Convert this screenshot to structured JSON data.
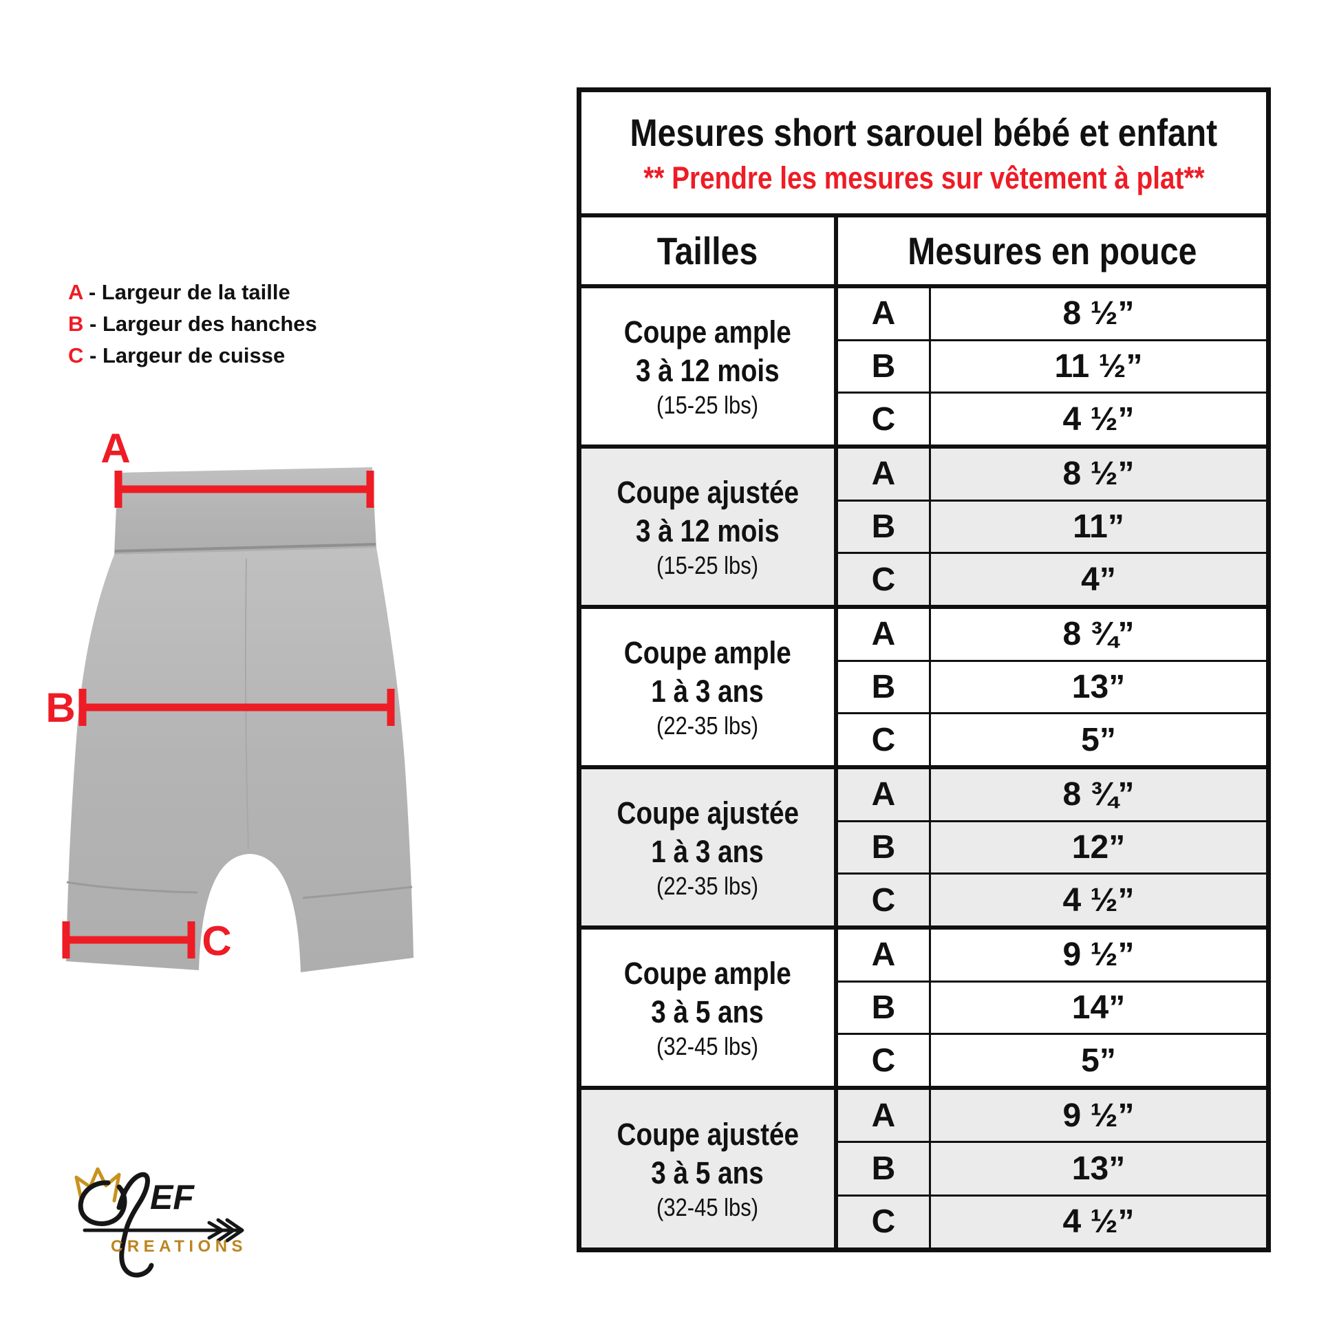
{
  "colors": {
    "red": "#ee1c25",
    "border": "#101010",
    "shaded_row": "#ebebeb",
    "shorts_gray": "#b6b6b6",
    "gold": "#bc8420"
  },
  "legend": {
    "separator": "-",
    "items": [
      {
        "letter": "A",
        "label": "Largeur de la taille"
      },
      {
        "letter": "B",
        "label": "Largeur des hanches"
      },
      {
        "letter": "C",
        "label": "Largeur de cuisse"
      }
    ]
  },
  "diagram": {
    "measure_labels": [
      "A",
      "B",
      "C"
    ]
  },
  "logo": {
    "script_letters": "EF",
    "wordmark": "CREATIONS"
  },
  "table": {
    "title": "Mesures short sarouel bébé et enfant",
    "subtitle": "** Prendre les mesures sur vêtement à plat**",
    "col_headers": [
      "Tailles",
      "Mesures en pouce"
    ],
    "groups": [
      {
        "cut": "Coupe ample",
        "age": "3 à 12 mois",
        "weight": "(15-25 lbs)",
        "shaded": false,
        "rows": [
          [
            "A",
            "8 ½”"
          ],
          [
            "B",
            "11 ½”"
          ],
          [
            "C",
            "4 ½”"
          ]
        ]
      },
      {
        "cut": "Coupe ajustée",
        "age": "3 à 12 mois",
        "weight": "(15-25 lbs)",
        "shaded": true,
        "rows": [
          [
            "A",
            "8 ½”"
          ],
          [
            "B",
            "11”"
          ],
          [
            "C",
            "4”"
          ]
        ]
      },
      {
        "cut": "Coupe ample",
        "age": "1 à 3 ans",
        "weight": "(22-35 lbs)",
        "shaded": false,
        "rows": [
          [
            "A",
            "8 ¾”"
          ],
          [
            "B",
            "13”"
          ],
          [
            "C",
            "5”"
          ]
        ]
      },
      {
        "cut": "Coupe ajustée",
        "age": "1 à 3 ans",
        "weight": "(22-35 lbs)",
        "shaded": true,
        "rows": [
          [
            "A",
            "8 ¾”"
          ],
          [
            "B",
            "12”"
          ],
          [
            "C",
            "4 ½”"
          ]
        ]
      },
      {
        "cut": "Coupe ample",
        "age": "3 à 5 ans",
        "weight": "(32-45 lbs)",
        "shaded": false,
        "rows": [
          [
            "A",
            "9 ½”"
          ],
          [
            "B",
            "14”"
          ],
          [
            "C",
            "5”"
          ]
        ]
      },
      {
        "cut": "Coupe ajustée",
        "age": "3 à 5 ans",
        "weight": "(32-45 lbs)",
        "shaded": true,
        "rows": [
          [
            "A",
            "9 ½”"
          ],
          [
            "B",
            "13”"
          ],
          [
            "C",
            "4 ½”"
          ]
        ]
      }
    ]
  }
}
